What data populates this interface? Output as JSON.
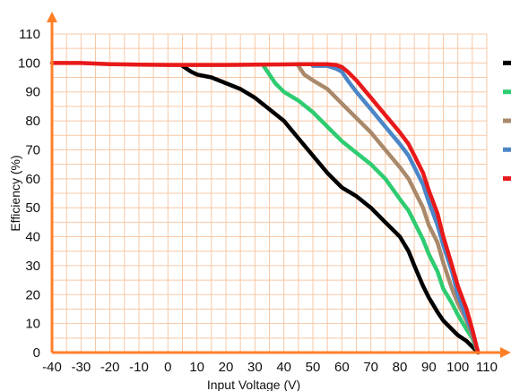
{
  "chart_data": {
    "type": "line",
    "title": "",
    "xlabel": "Input Voltage (V)",
    "ylabel": "Efficiency (%)",
    "xlim": [
      -40,
      110
    ],
    "ylim": [
      0,
      110
    ],
    "grid": true,
    "legend_placement": "right",
    "x_ticks": [
      "-40",
      "-30",
      "-20",
      "-10",
      "0",
      "10",
      "20",
      "30",
      "40",
      "50",
      "60",
      "70",
      "80",
      "90",
      "100",
      "110"
    ],
    "y_ticks": [
      "0",
      "10",
      "20",
      "30",
      "40",
      "50",
      "60",
      "70",
      "80",
      "90",
      "100",
      "110"
    ],
    "colors": {
      "axis": "#FF7F27",
      "grid": "#F7C8A6"
    },
    "series": [
      {
        "color": "#000000",
        "x": [
          5,
          8,
          10,
          15,
          20,
          25,
          30,
          35,
          40,
          45,
          50,
          55,
          60,
          65,
          70,
          75,
          80,
          83,
          85,
          88,
          90,
          93,
          95,
          98,
          100,
          103,
          105,
          107
        ],
        "y": [
          99,
          97,
          96,
          95,
          93,
          91,
          88,
          84,
          80,
          74,
          68,
          62,
          57,
          54,
          50,
          45,
          40,
          35,
          30,
          23,
          19,
          14,
          11,
          8,
          6,
          4,
          2,
          0
        ]
      },
      {
        "color": "#2ECC71",
        "x": [
          33,
          35,
          37,
          40,
          45,
          50,
          55,
          60,
          65,
          70,
          75,
          80,
          83,
          85,
          88,
          90,
          93,
          95,
          98,
          100,
          103,
          105,
          107
        ],
        "y": [
          99,
          96,
          93,
          90,
          87,
          83,
          78,
          73,
          69,
          65,
          60,
          53,
          49,
          45,
          39,
          34,
          28,
          22,
          17,
          13,
          8,
          5,
          0
        ]
      },
      {
        "color": "#A9896A",
        "x": [
          45,
          47,
          50,
          55,
          60,
          65,
          70,
          75,
          80,
          83,
          85,
          88,
          90,
          93,
          95,
          98,
          100,
          103,
          105,
          107
        ],
        "y": [
          99,
          96,
          94,
          91,
          86,
          81,
          76,
          70,
          64,
          60,
          56,
          50,
          44,
          38,
          31,
          22,
          17,
          11,
          6,
          0
        ]
      },
      {
        "color": "#4A86C8",
        "x": [
          50,
          55,
          58,
          60,
          62,
          65,
          70,
          75,
          80,
          83,
          85,
          88,
          90,
          93,
          95,
          98,
          100,
          103,
          105,
          107
        ],
        "y": [
          99,
          99,
          98,
          97,
          94,
          90,
          84,
          78,
          72,
          68,
          64,
          58,
          52,
          44,
          37,
          28,
          20,
          12,
          7,
          0
        ]
      },
      {
        "color": "#E8191A",
        "x": [
          -40,
          -30,
          -20,
          -10,
          0,
          10,
          20,
          30,
          40,
          45,
          50,
          55,
          58,
          60,
          62,
          65,
          70,
          75,
          80,
          83,
          85,
          88,
          90,
          93,
          95,
          98,
          100,
          103,
          105,
          107
        ],
        "y": [
          100,
          100,
          99.6,
          99.4,
          99.3,
          99.3,
          99.3,
          99.4,
          99.5,
          99.6,
          99.6,
          99.6,
          99.3,
          98.6,
          97,
          94,
          88,
          82,
          76,
          72,
          68,
          62,
          56,
          48,
          40,
          30,
          23,
          15,
          8,
          0
        ]
      }
    ]
  }
}
